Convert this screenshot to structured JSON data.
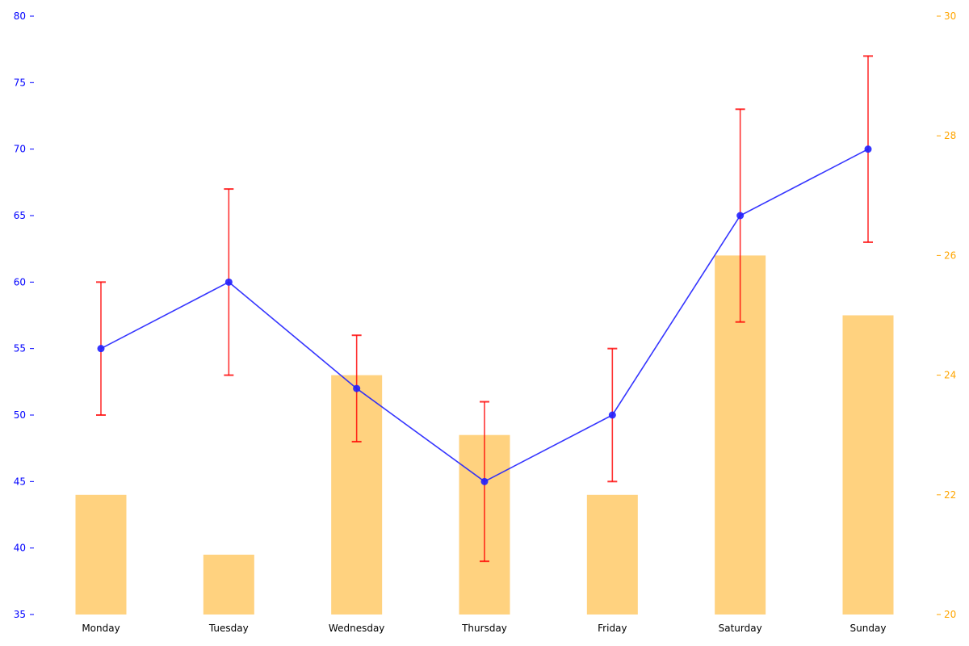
{
  "chart_data": {
    "type": "bar+line",
    "categories": [
      "Monday",
      "Tuesday",
      "Wednesday",
      "Thursday",
      "Friday",
      "Saturday",
      "Sunday"
    ],
    "line_series": {
      "axis": "left",
      "values": [
        55,
        60,
        52,
        45,
        50,
        65,
        70
      ],
      "error_low": [
        50,
        53,
        48,
        39,
        45,
        57,
        63
      ],
      "error_high": [
        60,
        67,
        56,
        51,
        55,
        73,
        77
      ],
      "color": "#2020ff",
      "error_color": "#ff0000"
    },
    "bar_series": {
      "axis": "right",
      "values": [
        22,
        21,
        24,
        23,
        22,
        26,
        25
      ],
      "color": "#ffa500"
    },
    "left_axis": {
      "ylim": [
        35,
        80
      ],
      "ticks": [
        "35",
        "40",
        "45",
        "50",
        "55",
        "60",
        "65",
        "70",
        "75",
        "80"
      ],
      "color": "#0000ff"
    },
    "right_axis": {
      "ylim": [
        20,
        30
      ],
      "ticks": [
        "20",
        "22",
        "24",
        "26",
        "28",
        "30"
      ],
      "color": "#ffa500"
    },
    "grid": false,
    "title": "",
    "xlabel": "",
    "ylabel": ""
  }
}
